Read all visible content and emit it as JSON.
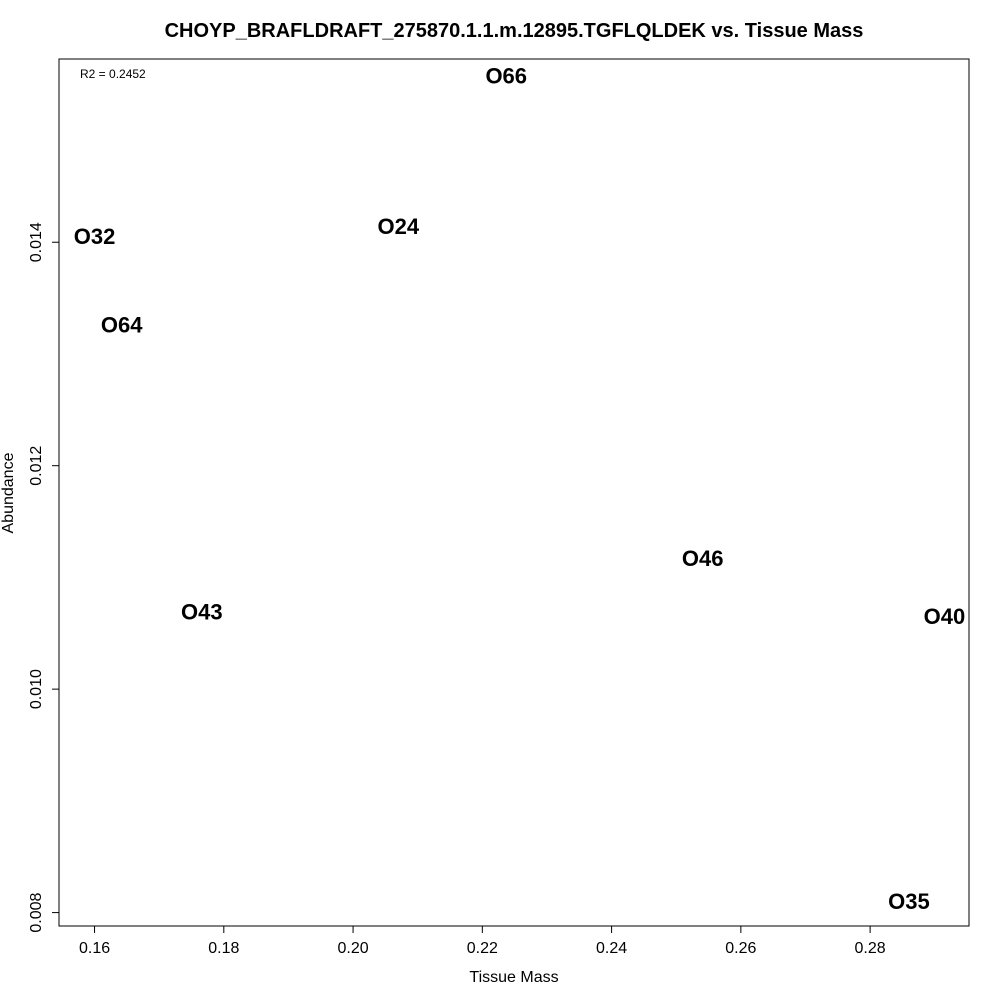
{
  "chart_data": {
    "type": "scatter",
    "title": "CHOYP_BRAFLDRAFT_275870.1.1.m.12895.TGFLQLDEK vs. Tissue Mass",
    "xlabel": "Tissue Mass",
    "ylabel": "Abundance",
    "annotation": "R2 = 0.2452",
    "xlim": [
      0.1545,
      0.2953
    ],
    "ylim": [
      0.00788,
      0.01564
    ],
    "xticks": [
      0.16,
      0.18,
      0.2,
      0.22,
      0.24,
      0.26,
      0.28
    ],
    "xtick_labels": [
      "0.16",
      "0.18",
      "0.20",
      "0.22",
      "0.24",
      "0.26",
      "0.28"
    ],
    "yticks": [
      0.008,
      0.01,
      0.012,
      0.014
    ],
    "ytick_labels": [
      "0.008",
      "0.010",
      "0.012",
      "0.014"
    ],
    "grid": false,
    "points": [
      {
        "label": "O66",
        "x": 0.2237,
        "y": 0.01549
      },
      {
        "label": "O32",
        "x": 0.16,
        "y": 0.01405
      },
      {
        "label": "O24",
        "x": 0.207,
        "y": 0.01414
      },
      {
        "label": "O64",
        "x": 0.1642,
        "y": 0.01326
      },
      {
        "label": "O46",
        "x": 0.2541,
        "y": 0.01117
      },
      {
        "label": "O43",
        "x": 0.1766,
        "y": 0.01069
      },
      {
        "label": "O40",
        "x": 0.2915,
        "y": 0.01065
      },
      {
        "label": "O35",
        "x": 0.286,
        "y": 0.0081
      }
    ]
  }
}
